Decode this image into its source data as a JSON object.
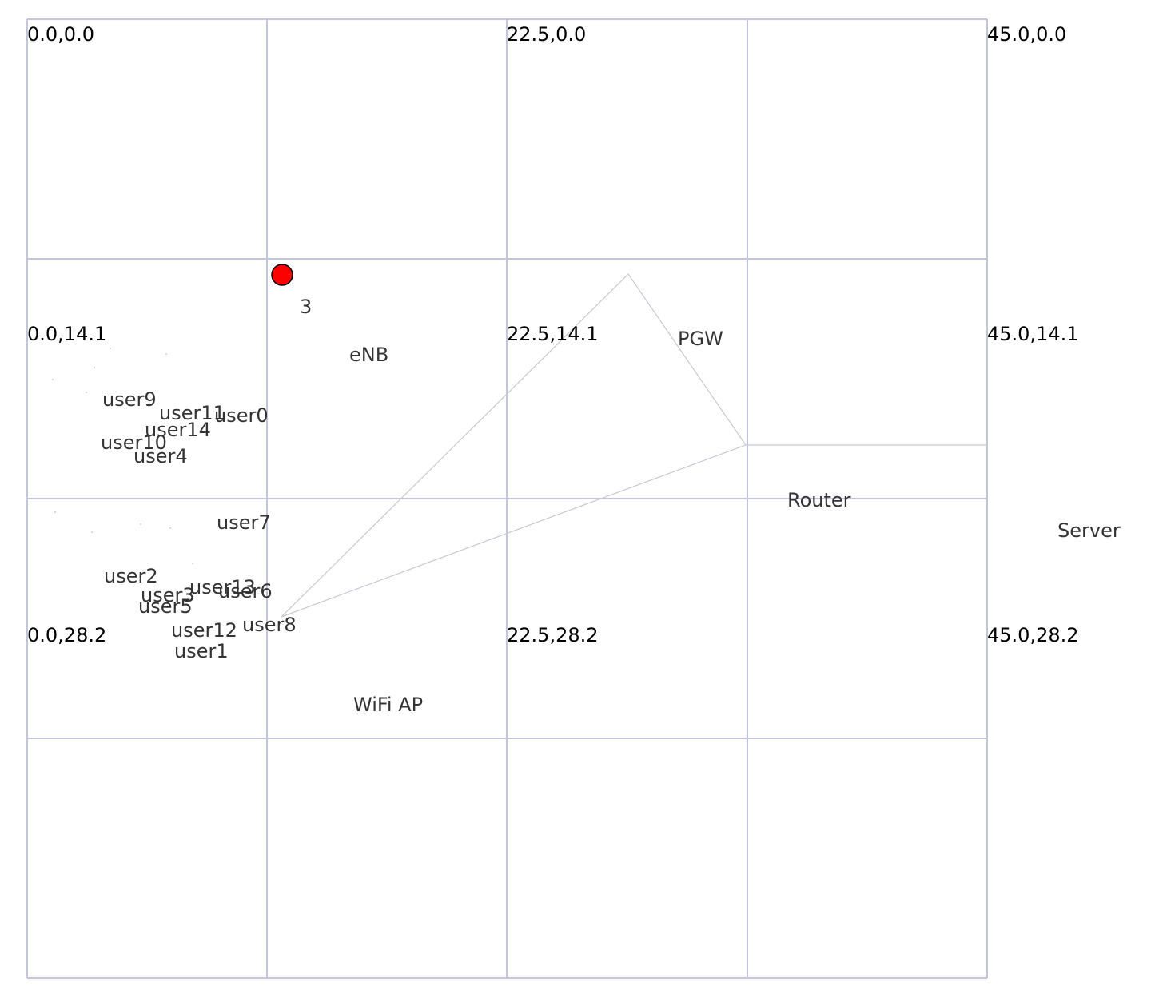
{
  "grid": {
    "line_color": "#c4c4dc",
    "corner_labels": [
      {
        "text": "0.0,0.0",
        "col": 0,
        "row": 0
      },
      {
        "text": "22.5,0.0",
        "col": 2,
        "row": 0
      },
      {
        "text": "45.0,0.0",
        "col": 4,
        "row": 0
      },
      {
        "text": "0.0,14.1",
        "col": 0,
        "row": 1
      },
      {
        "text": "22.5,14.1",
        "col": 2,
        "row": 1
      },
      {
        "text": "45.0,14.1",
        "col": 4,
        "row": 1
      },
      {
        "text": "0.0,28.2",
        "col": 0,
        "row": 2
      },
      {
        "text": "22.5,28.2",
        "col": 2,
        "row": 2
      },
      {
        "text": "45.0,28.2",
        "col": 4,
        "row": 2
      }
    ]
  },
  "marker": {
    "label": "3",
    "color": "#ff0000"
  },
  "nodes": {
    "enb": "eNB",
    "pgw": "PGW",
    "router": "Router",
    "server": "Server",
    "wifi_ap": "WiFi AP",
    "users": [
      "user0",
      "user1",
      "user2",
      "user3",
      "user4",
      "user5",
      "user6",
      "user7",
      "user8",
      "user9",
      "user10",
      "user11",
      "user12",
      "user13",
      "user14"
    ]
  },
  "link_color": "#c8c8d0"
}
